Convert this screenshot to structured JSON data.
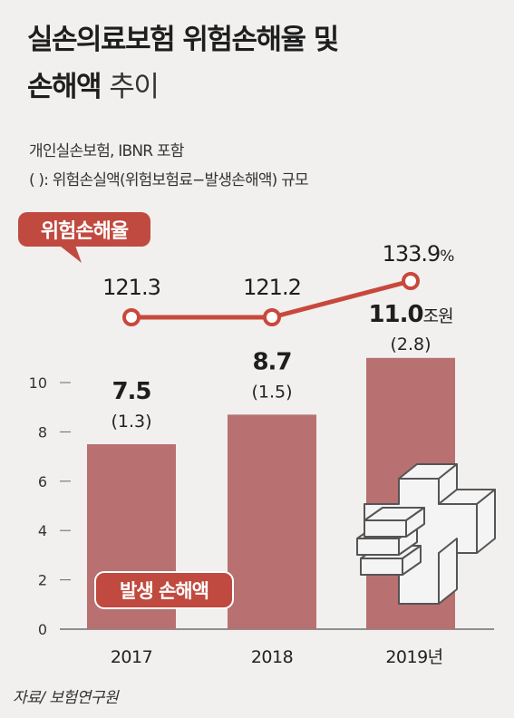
{
  "title": {
    "line1": "실손의료보험 위험손해율 및",
    "line2_bold": "손해액",
    "line2_light": "추이"
  },
  "subtitle": {
    "line1": "개인실손보험, IBNR 포함",
    "line2": "( ):  위험손실액(위험보험료−발생손해액) 규모"
  },
  "source": "자료/ 보험연구원",
  "colors": {
    "bar": "#b87070",
    "line": "#c8483c",
    "label_fill": "#c04a3f",
    "badge_border": "#ffffff"
  },
  "icon": "medical-cross-with-bills-icon",
  "chart_data": {
    "type": "bar",
    "categories": [
      "2017",
      "2018",
      "2019년"
    ],
    "ylim": [
      0,
      11
    ],
    "yticks": [
      "0",
      "2",
      "4",
      "6",
      "8",
      "10"
    ],
    "bar_series": {
      "name": "발생 손해액",
      "values": [
        7.5,
        8.7,
        11.0
      ],
      "value_labels": [
        "7.5",
        "8.7",
        "11.0"
      ],
      "value_unit": "조원",
      "paren_labels": [
        "(1.3)",
        "(1.5)",
        "(2.8)"
      ]
    },
    "line_series": {
      "name": "위험손해율",
      "values": [
        121.3,
        121.2,
        133.9
      ],
      "value_labels": [
        "121.3",
        "121.2",
        "133.9"
      ],
      "value_unit": "%"
    }
  }
}
